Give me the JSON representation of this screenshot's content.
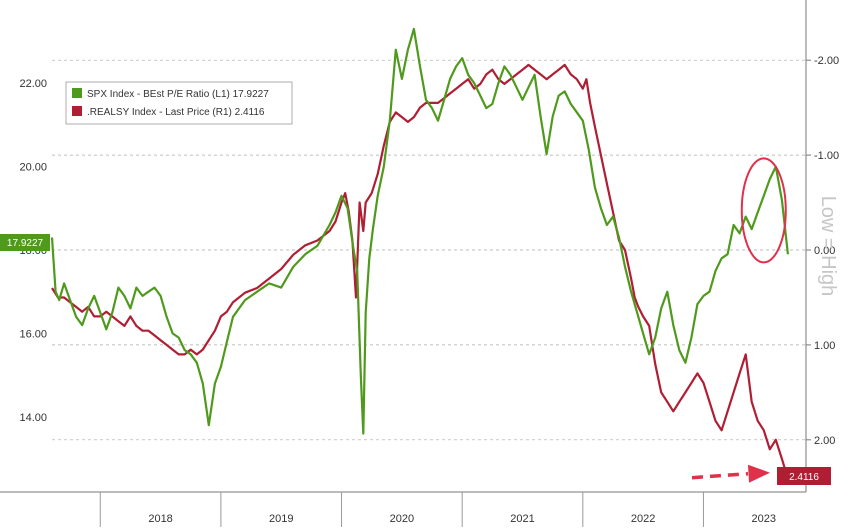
{
  "chart_data": {
    "type": "line",
    "legend": {
      "placement": "top-left",
      "entries": [
        {
          "label": "SPX Index - BEst P/E Ratio (L1) 17.9227",
          "color": "#4f9a1c"
        },
        {
          "label": ".REALSY Index - Last Price (R1) 2.4116",
          "color": "#b01e34"
        }
      ]
    },
    "x_tick_labels": [
      "2018",
      "2019",
      "2020",
      "2021",
      "2022",
      "2023"
    ],
    "x_range": [
      2017.6,
      2023.85
    ],
    "left_axis": {
      "range": [
        12.2,
        23.8
      ],
      "ticks": [
        14,
        16,
        18,
        20,
        22
      ],
      "tick_labels": [
        "14.00",
        "16.00",
        "18.00",
        "20.00",
        "22.00"
      ]
    },
    "right_axis": {
      "inverted": true,
      "range": [
        -2.55,
        2.55
      ],
      "ticks": [
        -2,
        -1,
        0,
        1,
        2
      ],
      "tick_labels": [
        "-2.00",
        "-1.00",
        "0.00",
        "1.00",
        "2.00"
      ],
      "side_label": "Low = High"
    },
    "last_value_badges": {
      "left": {
        "text": "17.9227",
        "color": "#4f9a1c"
      },
      "right": {
        "text": "2.4116",
        "color": "#b01e34"
      }
    },
    "grid": true,
    "annotations": [
      "red circle around recent P/E peak",
      "red dashed arrow pointing to latest real yield"
    ],
    "series": [
      {
        "name": "SPX Index - BEst P/E Ratio",
        "axis": "left",
        "color": "#4f9a1c",
        "x": [
          2017.6,
          2017.63,
          2017.66,
          2017.7,
          2017.75,
          2017.8,
          2017.85,
          2017.9,
          2017.95,
          2018.0,
          2018.05,
          2018.1,
          2018.15,
          2018.2,
          2018.25,
          2018.3,
          2018.35,
          2018.4,
          2018.45,
          2018.5,
          2018.55,
          2018.6,
          2018.65,
          2018.7,
          2018.75,
          2018.8,
          2018.85,
          2018.9,
          2018.95,
          2019.0,
          2019.05,
          2019.1,
          2019.2,
          2019.3,
          2019.4,
          2019.5,
          2019.6,
          2019.7,
          2019.8,
          2019.9,
          2019.95,
          2020.0,
          2020.05,
          2020.1,
          2020.13,
          2020.16,
          2020.18,
          2020.2,
          2020.23,
          2020.26,
          2020.3,
          2020.35,
          2020.4,
          2020.45,
          2020.5,
          2020.55,
          2020.6,
          2020.65,
          2020.7,
          2020.75,
          2020.8,
          2020.85,
          2020.9,
          2020.95,
          2021.0,
          2021.05,
          2021.1,
          2021.15,
          2021.2,
          2021.25,
          2021.3,
          2021.35,
          2021.4,
          2021.45,
          2021.5,
          2021.55,
          2021.6,
          2021.65,
          2021.7,
          2021.75,
          2021.8,
          2021.85,
          2021.9,
          2021.95,
          2022.0,
          2022.05,
          2022.1,
          2022.15,
          2022.2,
          2022.25,
          2022.3,
          2022.35,
          2022.4,
          2022.45,
          2022.5,
          2022.55,
          2022.6,
          2022.65,
          2022.7,
          2022.75,
          2022.8,
          2022.85,
          2022.9,
          2022.95,
          2023.0,
          2023.05,
          2023.1,
          2023.15,
          2023.2,
          2023.25,
          2023.3,
          2023.35,
          2023.4,
          2023.45,
          2023.5,
          2023.55,
          2023.6,
          2023.65,
          2023.7
        ],
        "values": [
          18.3,
          17.0,
          16.8,
          17.2,
          16.8,
          16.4,
          16.2,
          16.6,
          16.9,
          16.5,
          16.1,
          16.5,
          17.1,
          16.9,
          16.6,
          17.1,
          16.9,
          17.0,
          17.1,
          16.9,
          16.4,
          16.0,
          15.9,
          15.6,
          15.5,
          15.3,
          14.8,
          13.8,
          14.8,
          15.2,
          15.8,
          16.4,
          16.8,
          17.0,
          17.2,
          17.1,
          17.6,
          17.9,
          18.1,
          18.6,
          18.9,
          19.3,
          19.0,
          18.0,
          17.5,
          15.0,
          13.6,
          16.5,
          17.8,
          18.5,
          19.3,
          20.0,
          21.1,
          22.8,
          22.1,
          22.8,
          23.3,
          22.4,
          21.6,
          21.4,
          21.1,
          21.6,
          22.1,
          22.4,
          22.6,
          22.2,
          22.0,
          21.7,
          21.4,
          21.5,
          22.0,
          22.4,
          22.2,
          21.9,
          21.6,
          21.9,
          22.2,
          21.2,
          20.3,
          21.2,
          21.7,
          21.8,
          21.5,
          21.3,
          21.1,
          20.4,
          19.5,
          19.0,
          18.6,
          18.8,
          18.3,
          17.6,
          17.0,
          16.5,
          16.0,
          15.5,
          15.9,
          16.6,
          17.0,
          16.2,
          15.6,
          15.3,
          15.9,
          16.7,
          16.9,
          17.0,
          17.5,
          17.8,
          17.9,
          18.6,
          18.4,
          18.8,
          18.5,
          18.9,
          19.3,
          19.7,
          20.0,
          19.2,
          17.9
        ]
      },
      {
        "name": ".REALSY Index - Last Price",
        "axis": "right",
        "color": "#b01e34",
        "x": [
          2017.6,
          2017.65,
          2017.7,
          2017.75,
          2017.8,
          2017.85,
          2017.9,
          2017.95,
          2018.0,
          2018.05,
          2018.1,
          2018.15,
          2018.2,
          2018.25,
          2018.3,
          2018.35,
          2018.4,
          2018.45,
          2018.5,
          2018.55,
          2018.6,
          2018.65,
          2018.7,
          2018.75,
          2018.8,
          2018.85,
          2018.9,
          2018.95,
          2019.0,
          2019.05,
          2019.1,
          2019.15,
          2019.2,
          2019.3,
          2019.4,
          2019.5,
          2019.6,
          2019.7,
          2019.8,
          2019.9,
          2019.95,
          2020.0,
          2020.03,
          2020.06,
          2020.09,
          2020.12,
          2020.15,
          2020.18,
          2020.2,
          2020.25,
          2020.3,
          2020.35,
          2020.4,
          2020.45,
          2020.5,
          2020.55,
          2020.6,
          2020.65,
          2020.7,
          2020.75,
          2020.8,
          2020.85,
          2020.9,
          2020.95,
          2021.0,
          2021.05,
          2021.1,
          2021.15,
          2021.2,
          2021.25,
          2021.3,
          2021.35,
          2021.4,
          2021.45,
          2021.5,
          2021.55,
          2021.6,
          2021.65,
          2021.7,
          2021.75,
          2021.8,
          2021.85,
          2021.9,
          2021.95,
          2022.0,
          2022.03,
          2022.06,
          2022.1,
          2022.15,
          2022.2,
          2022.25,
          2022.3,
          2022.35,
          2022.4,
          2022.43,
          2022.46,
          2022.5,
          2022.55,
          2022.6,
          2022.65,
          2022.7,
          2022.75,
          2022.8,
          2022.85,
          2022.9,
          2022.95,
          2023.0,
          2023.05,
          2023.1,
          2023.15,
          2023.2,
          2023.25,
          2023.3,
          2023.35,
          2023.4,
          2023.45,
          2023.5,
          2023.55,
          2023.6,
          2023.65,
          2023.7
        ],
        "values": [
          0.4,
          0.5,
          0.5,
          0.55,
          0.6,
          0.65,
          0.6,
          0.7,
          0.7,
          0.65,
          0.7,
          0.75,
          0.8,
          0.7,
          0.8,
          0.85,
          0.85,
          0.9,
          0.95,
          1.0,
          1.05,
          1.1,
          1.1,
          1.05,
          1.1,
          1.05,
          0.95,
          0.85,
          0.7,
          0.65,
          0.55,
          0.5,
          0.45,
          0.4,
          0.3,
          0.2,
          0.05,
          -0.05,
          -0.1,
          -0.2,
          -0.3,
          -0.5,
          -0.6,
          -0.4,
          -0.1,
          0.5,
          -0.5,
          -0.2,
          -0.5,
          -0.6,
          -0.8,
          -1.1,
          -1.35,
          -1.45,
          -1.4,
          -1.35,
          -1.4,
          -1.5,
          -1.55,
          -1.55,
          -1.55,
          -1.6,
          -1.65,
          -1.7,
          -1.75,
          -1.8,
          -1.7,
          -1.75,
          -1.85,
          -1.9,
          -1.8,
          -1.75,
          -1.8,
          -1.85,
          -1.9,
          -1.95,
          -1.9,
          -1.85,
          -1.8,
          -1.85,
          -1.9,
          -1.95,
          -1.85,
          -1.8,
          -1.7,
          -1.8,
          -1.55,
          -1.3,
          -1.0,
          -0.7,
          -0.4,
          -0.1,
          0.0,
          0.3,
          0.5,
          0.6,
          0.7,
          0.8,
          1.2,
          1.5,
          1.6,
          1.7,
          1.6,
          1.5,
          1.4,
          1.3,
          1.4,
          1.6,
          1.8,
          1.9,
          1.7,
          1.5,
          1.3,
          1.1,
          1.6,
          1.8,
          1.9,
          2.1,
          2.0,
          2.2,
          2.41
        ]
      }
    ]
  }
}
